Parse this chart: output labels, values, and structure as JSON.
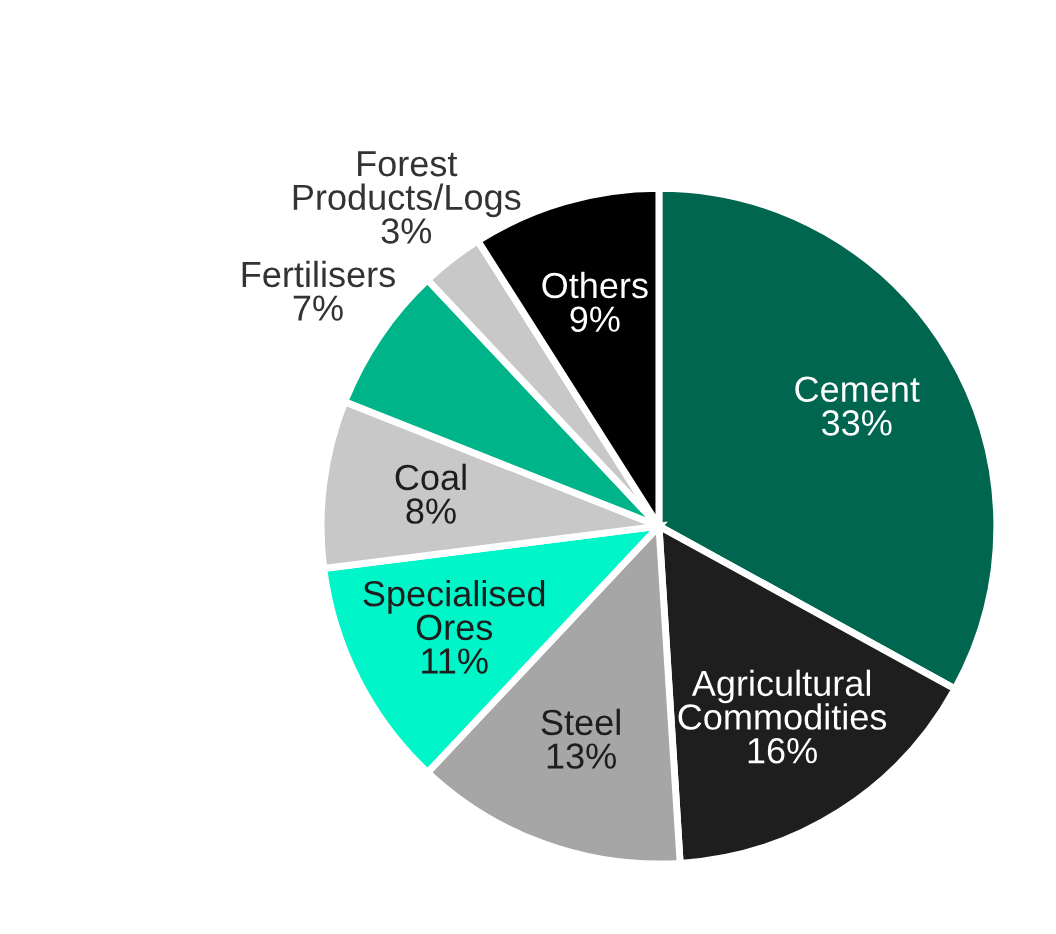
{
  "chart_data": {
    "type": "pie",
    "categories": [
      "Cement",
      "Agricultural Commodities",
      "Steel",
      "Specialised Ores",
      "Coal",
      "Fertilisers",
      "Forest Products/Logs",
      "Others"
    ],
    "values": [
      33,
      16,
      13,
      11,
      8,
      7,
      3,
      9
    ],
    "colors": [
      "#006650",
      "#1e1e1e",
      "#a6a6a6",
      "#00f5c8",
      "#c8c8c8",
      "#00b48a",
      "#c8c8c8",
      "#000000"
    ],
    "value_labels": [
      "33%",
      "16%",
      "13%",
      "11%",
      "8%",
      "7%",
      "3%",
      "9%"
    ],
    "legend": false
  }
}
